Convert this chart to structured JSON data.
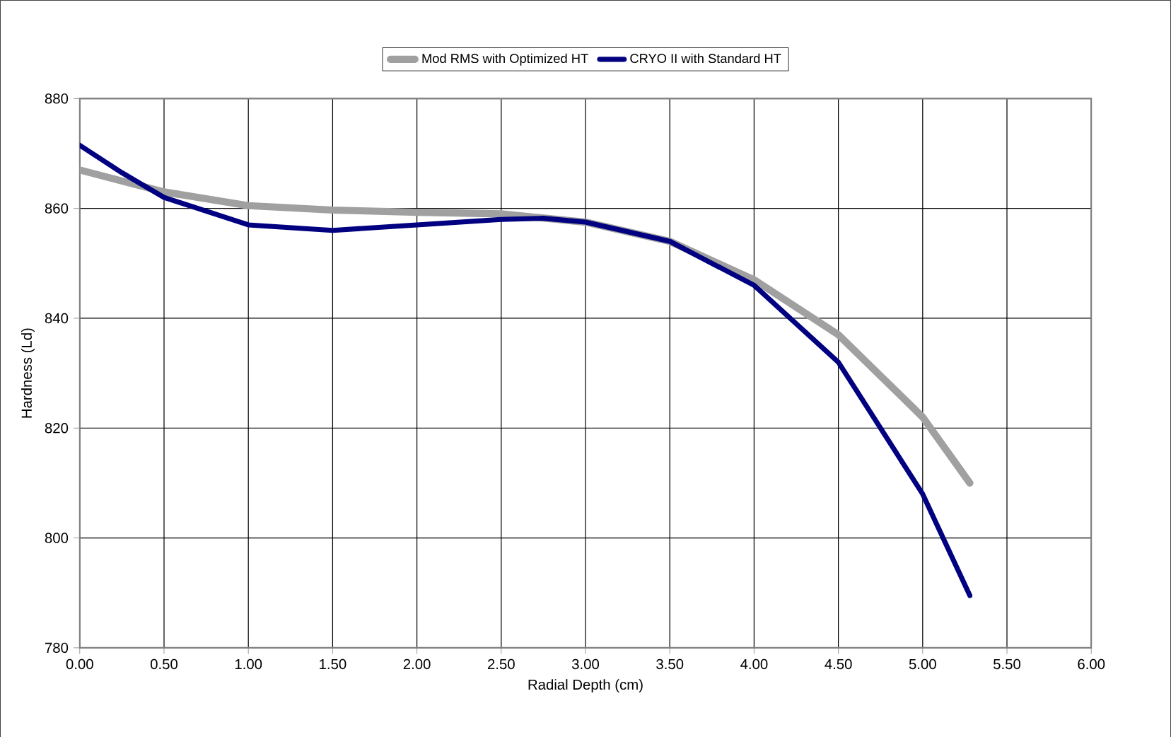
{
  "chart_data": {
    "type": "line",
    "xlabel": "Radial Depth (cm)",
    "ylabel": "Hardness (Ld)",
    "xlim": [
      0,
      6
    ],
    "xticks": [
      {
        "value": 0,
        "label": "0.00"
      },
      {
        "value": 0.5,
        "label": "0.50"
      },
      {
        "value": 1,
        "label": "1.00"
      },
      {
        "value": 1.5,
        "label": "1.50"
      },
      {
        "value": 2,
        "label": "2.00"
      },
      {
        "value": 2.5,
        "label": "2.50"
      },
      {
        "value": 3,
        "label": "3.00"
      },
      {
        "value": 3.5,
        "label": "3.50"
      },
      {
        "value": 4,
        "label": "4.00"
      },
      {
        "value": 4.5,
        "label": "4.50"
      },
      {
        "value": 5,
        "label": "5.00"
      },
      {
        "value": 5.5,
        "label": "5.50"
      },
      {
        "value": 6,
        "label": "6.00"
      }
    ],
    "ylim": [
      780,
      880
    ],
    "yticks": [
      780,
      800,
      820,
      840,
      860,
      880
    ],
    "grid": true,
    "legend": "top",
    "marker": "none",
    "series": [
      {
        "name": "Mod RMS with Optimized HT",
        "color": "#a0a0a0",
        "x": [
          0,
          0.25,
          0.5,
          1,
          1.5,
          2,
          2.5,
          3,
          3.5,
          4,
          4.5,
          5,
          5.28
        ],
        "values": [
          867,
          865,
          863,
          860.5,
          859.7,
          859.3,
          859,
          857.5,
          854,
          847,
          837,
          822,
          810
        ]
      },
      {
        "name": "CRYO II with Standard HT",
        "color": "#000080",
        "x": [
          0,
          0.25,
          0.5,
          1,
          1.5,
          2,
          2.5,
          2.75,
          3,
          3.5,
          4,
          4.5,
          5,
          5.28
        ],
        "values": [
          871.5,
          866.5,
          862,
          857,
          856,
          857,
          858,
          858.2,
          857.5,
          854,
          846,
          832,
          808,
          789.5
        ]
      }
    ]
  }
}
